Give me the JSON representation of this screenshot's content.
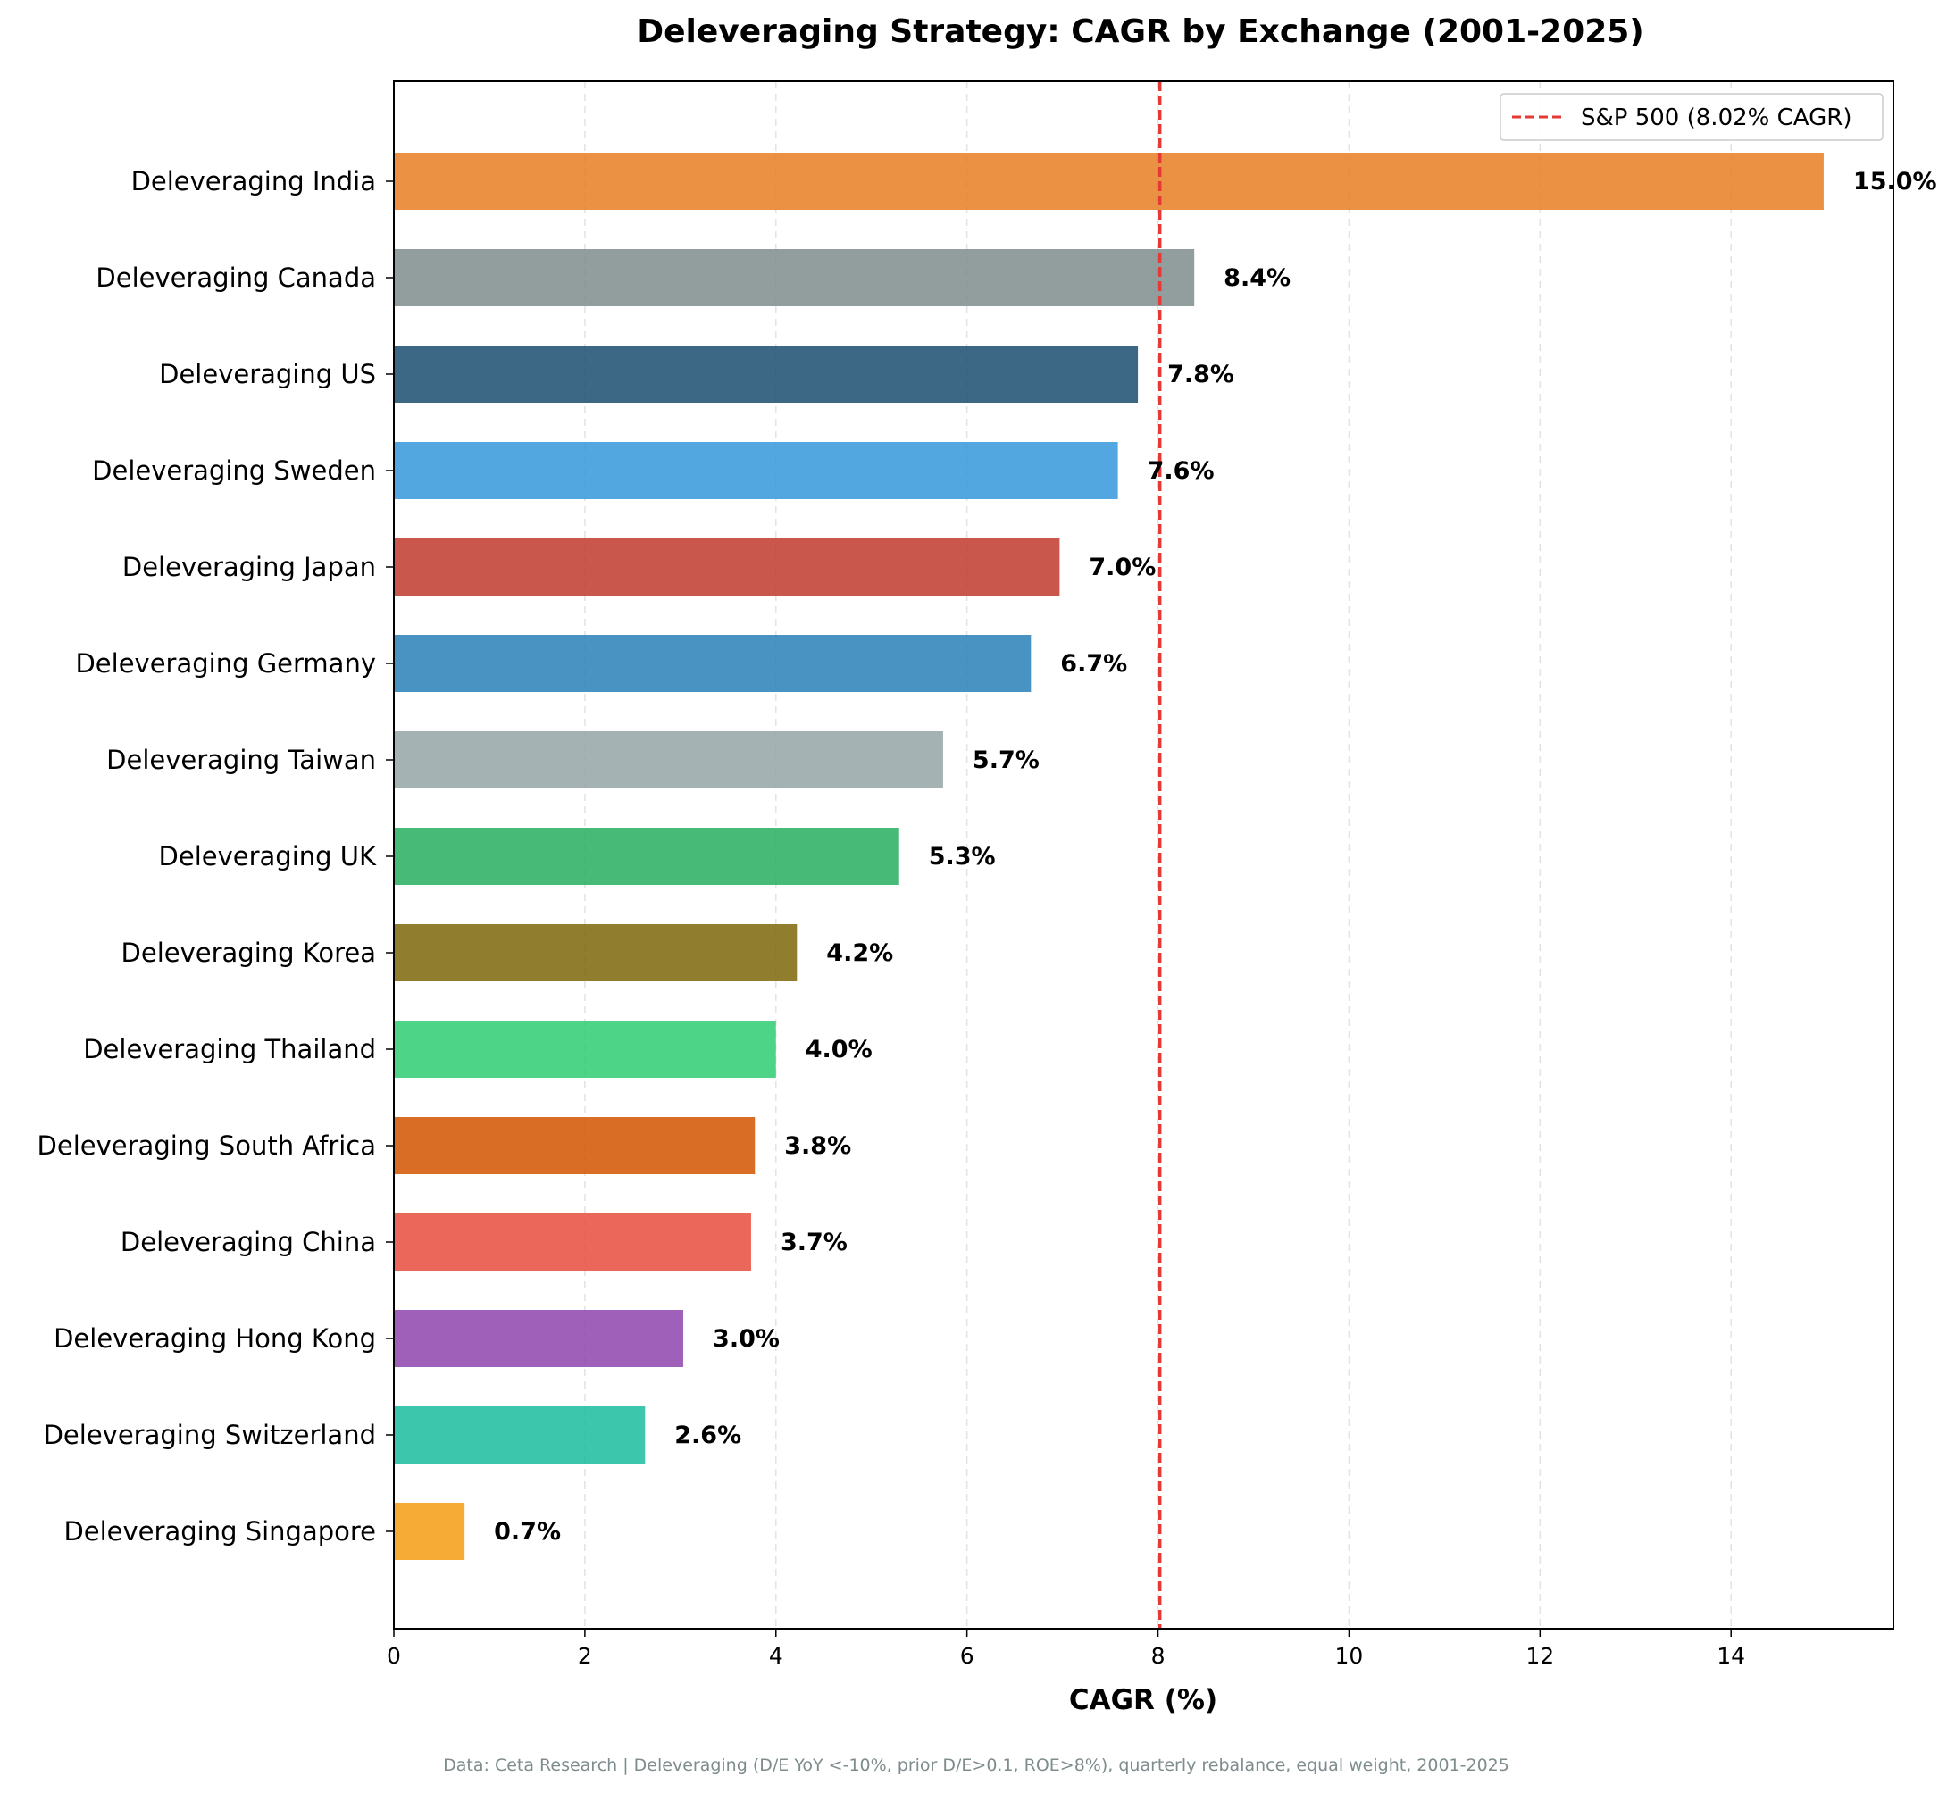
{
  "chart_data": {
    "type": "bar",
    "orientation": "horizontal",
    "title": "Deleveraging Strategy: CAGR by Exchange (2001-2025)",
    "xlabel": "CAGR (%)",
    "ylabel": "",
    "xlim": [
      0,
      15.7
    ],
    "x_ticks": [
      0,
      2,
      4,
      6,
      8,
      10,
      12,
      14
    ],
    "grid": "vertical dashed",
    "categories": [
      "Deleveraging India",
      "Deleveraging Canada",
      "Deleveraging US",
      "Deleveraging Sweden",
      "Deleveraging Japan",
      "Deleveraging Germany",
      "Deleveraging Taiwan",
      "Deleveraging UK",
      "Deleveraging Korea",
      "Deleveraging Thailand",
      "Deleveraging South Africa",
      "Deleveraging China",
      "Deleveraging Hong Kong",
      "Deleveraging Switzerland",
      "Deleveraging Singapore"
    ],
    "values": [
      14.97,
      8.38,
      7.79,
      7.58,
      6.97,
      6.67,
      5.75,
      5.29,
      4.22,
      4.0,
      3.78,
      3.74,
      3.03,
      2.63,
      0.74
    ],
    "value_labels": [
      "15.0%",
      "8.4%",
      "7.8%",
      "7.6%",
      "7.0%",
      "6.7%",
      "5.7%",
      "5.3%",
      "4.2%",
      "4.0%",
      "3.8%",
      "3.7%",
      "3.0%",
      "2.6%",
      "0.7%"
    ],
    "colors": [
      "#e67e22",
      "#7f8c8d",
      "#1a4d70",
      "#3498db",
      "#c0392b",
      "#2980b9",
      "#95a5a6",
      "#27ae60",
      "#7d6608",
      "#2ecc71",
      "#d35400",
      "#e74c3c",
      "#8e44ad",
      "#1abc9c",
      "#f39c12"
    ],
    "bar_alpha": 0.85,
    "reference_line": {
      "value": 8.02,
      "label": "S&P 500 (8.02% CAGR)",
      "color": "#e53935",
      "style": "dashed"
    },
    "legend_position": "top-right",
    "footnote": "Data: Ceta Research | Deleveraging (D/E YoY <-10%, prior D/E>0.1, ROE>8%), quarterly rebalance, equal weight, 2001-2025"
  }
}
